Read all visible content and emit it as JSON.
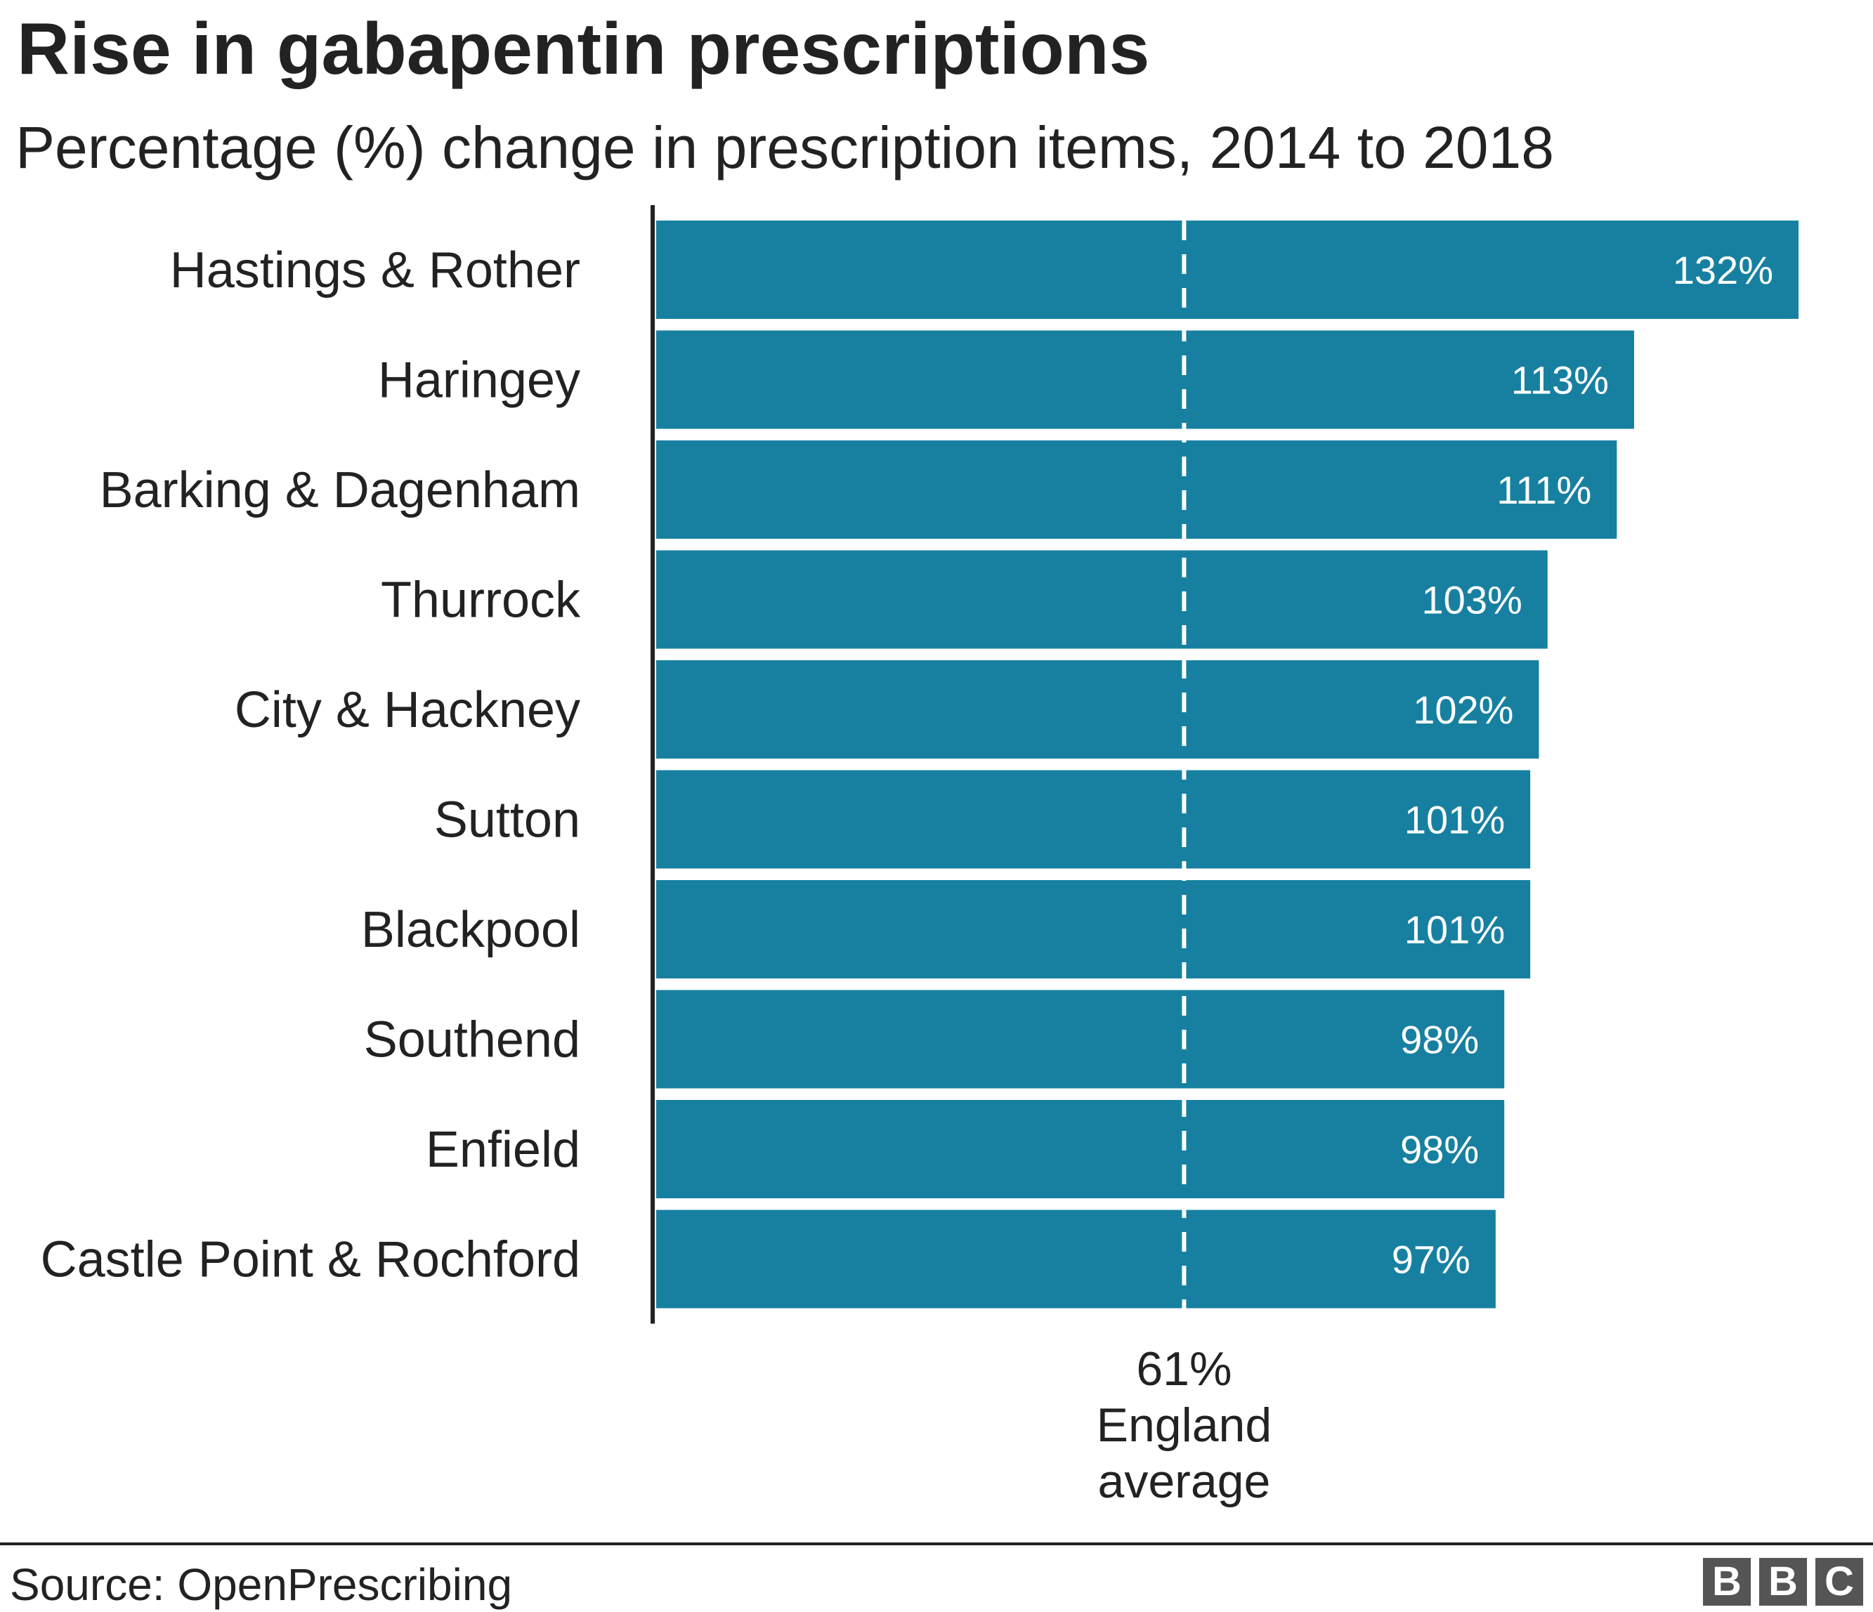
{
  "chart_data": {
    "type": "bar",
    "orientation": "horizontal",
    "title": "Rise in gabapentin prescriptions",
    "subtitle": "Percentage (%) change in prescription items, 2014 to 2018",
    "categories": [
      "Hastings & Rother",
      "Haringey",
      "Barking & Dagenham",
      "Thurrock",
      "City & Hackney",
      "Sutton",
      "Blackpool",
      "Southend",
      "Enfield",
      "Castle Point & Rochford"
    ],
    "values": [
      132,
      113,
      111,
      103,
      102,
      101,
      101,
      98,
      98,
      97
    ],
    "value_labels": [
      "132%",
      "113%",
      "111%",
      "103%",
      "102%",
      "101%",
      "101%",
      "98%",
      "98%",
      "97%"
    ],
    "xlim": [
      0,
      132
    ],
    "grid": false,
    "bar_color": "#1780a1",
    "reference_line": {
      "value": 61,
      "label_lines": [
        "61%",
        "England",
        "average"
      ],
      "style": "dashed",
      "color": "#ffffff"
    }
  },
  "footer": {
    "source": "Source: OpenPrescribing",
    "logo_letters": [
      "B",
      "B",
      "C"
    ]
  }
}
